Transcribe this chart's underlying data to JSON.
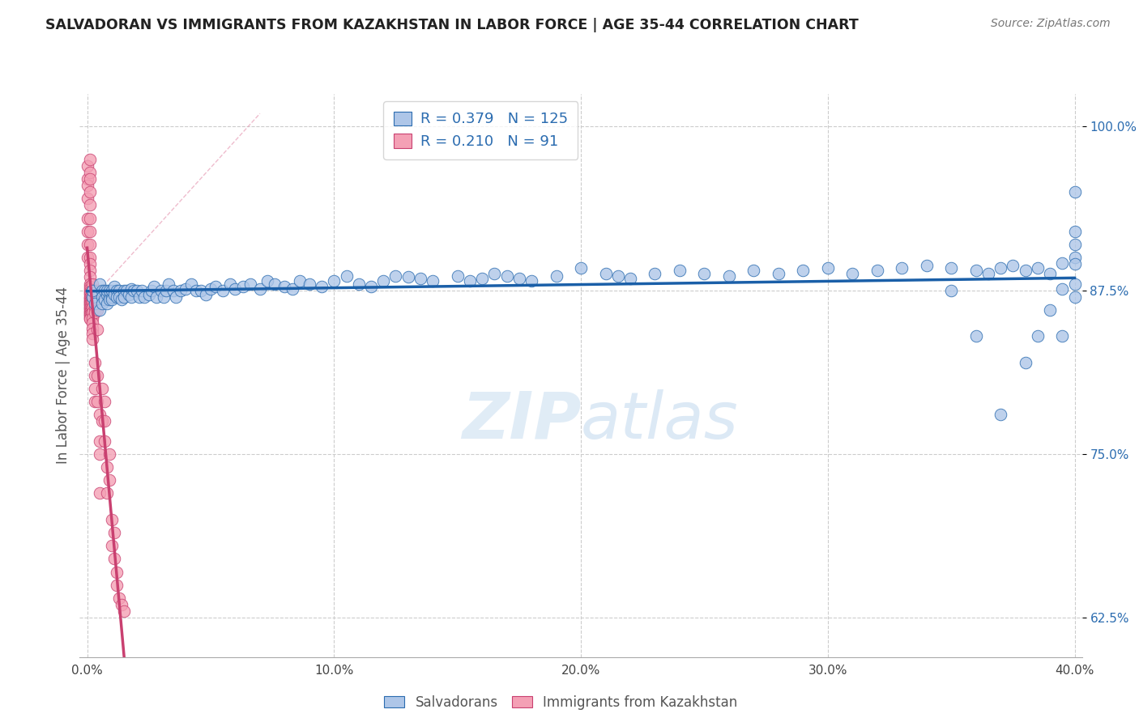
{
  "title": "SALVADORAN VS IMMIGRANTS FROM KAZAKHSTAN IN LABOR FORCE | AGE 35-44 CORRELATION CHART",
  "source": "Source: ZipAtlas.com",
  "ylabel": "In Labor Force | Age 35-44",
  "blue_R": 0.379,
  "blue_N": 125,
  "pink_R": 0.21,
  "pink_N": 91,
  "blue_color": "#aec6e8",
  "blue_edge_color": "#2b6cb0",
  "pink_color": "#f4a0b5",
  "pink_edge_color": "#c94070",
  "blue_line_color": "#1a5fa8",
  "pink_line_color": "#c94070",
  "xlim": [
    -0.003,
    0.403
  ],
  "ylim": [
    0.595,
    1.025
  ],
  "xticks": [
    0.0,
    0.1,
    0.2,
    0.3,
    0.4
  ],
  "xtick_labels": [
    "0.0%",
    "10.0%",
    "20.0%",
    "30.0%",
    "40.0%"
  ],
  "yticks": [
    0.625,
    0.75,
    0.875,
    1.0
  ],
  "ytick_labels": [
    "62.5%",
    "75.0%",
    "87.5%",
    "100.0%"
  ],
  "watermark_zip": "ZIP",
  "watermark_atlas": "atlas",
  "legend_blue_label": "Salvadorans",
  "legend_pink_label": "Immigrants from Kazakhstan",
  "blue_x": [
    0.002,
    0.002,
    0.003,
    0.005,
    0.005,
    0.006,
    0.006,
    0.006,
    0.007,
    0.007,
    0.008,
    0.008,
    0.008,
    0.009,
    0.009,
    0.009,
    0.01,
    0.01,
    0.01,
    0.011,
    0.011,
    0.012,
    0.012,
    0.013,
    0.013,
    0.014,
    0.015,
    0.015,
    0.016,
    0.017,
    0.018,
    0.018,
    0.019,
    0.02,
    0.021,
    0.022,
    0.023,
    0.025,
    0.026,
    0.027,
    0.028,
    0.03,
    0.031,
    0.032,
    0.033,
    0.035,
    0.036,
    0.038,
    0.04,
    0.042,
    0.044,
    0.046,
    0.048,
    0.05,
    0.052,
    0.055,
    0.058,
    0.06,
    0.063,
    0.066,
    0.07,
    0.073,
    0.076,
    0.08,
    0.083,
    0.086,
    0.09,
    0.095,
    0.1,
    0.105,
    0.11,
    0.115,
    0.12,
    0.125,
    0.13,
    0.135,
    0.14,
    0.15,
    0.155,
    0.16,
    0.165,
    0.17,
    0.175,
    0.18,
    0.19,
    0.2,
    0.21,
    0.215,
    0.22,
    0.23,
    0.24,
    0.25,
    0.26,
    0.27,
    0.28,
    0.29,
    0.3,
    0.31,
    0.32,
    0.33,
    0.34,
    0.35,
    0.36,
    0.365,
    0.37,
    0.375,
    0.38,
    0.385,
    0.39,
    0.395,
    0.395,
    0.4,
    0.4,
    0.4,
    0.4,
    0.4,
    0.4,
    0.4,
    0.395,
    0.39,
    0.385,
    0.38,
    0.37,
    0.36,
    0.35
  ],
  "blue_y": [
    0.87,
    0.875,
    0.865,
    0.88,
    0.86,
    0.875,
    0.87,
    0.865,
    0.875,
    0.868,
    0.872,
    0.865,
    0.875,
    0.87,
    0.868,
    0.875,
    0.87,
    0.875,
    0.868,
    0.872,
    0.878,
    0.875,
    0.87,
    0.875,
    0.87,
    0.868,
    0.875,
    0.87,
    0.875,
    0.872,
    0.876,
    0.87,
    0.875,
    0.875,
    0.87,
    0.875,
    0.87,
    0.872,
    0.875,
    0.878,
    0.87,
    0.875,
    0.87,
    0.875,
    0.88,
    0.875,
    0.87,
    0.875,
    0.876,
    0.88,
    0.875,
    0.875,
    0.872,
    0.876,
    0.878,
    0.875,
    0.88,
    0.876,
    0.878,
    0.88,
    0.876,
    0.882,
    0.88,
    0.878,
    0.876,
    0.882,
    0.88,
    0.878,
    0.882,
    0.886,
    0.88,
    0.878,
    0.882,
    0.886,
    0.885,
    0.884,
    0.882,
    0.886,
    0.882,
    0.884,
    0.888,
    0.886,
    0.884,
    0.882,
    0.886,
    0.892,
    0.888,
    0.886,
    0.884,
    0.888,
    0.89,
    0.888,
    0.886,
    0.89,
    0.888,
    0.89,
    0.892,
    0.888,
    0.89,
    0.892,
    0.894,
    0.892,
    0.89,
    0.888,
    0.892,
    0.894,
    0.89,
    0.892,
    0.888,
    0.896,
    0.876,
    0.95,
    0.92,
    0.91,
    0.9,
    0.895,
    0.88,
    0.87,
    0.84,
    0.86,
    0.84,
    0.82,
    0.78,
    0.84,
    0.875
  ],
  "pink_x": [
    0.0,
    0.0,
    0.0,
    0.0,
    0.0,
    0.0,
    0.0,
    0.0,
    0.001,
    0.001,
    0.001,
    0.001,
    0.001,
    0.001,
    0.001,
    0.001,
    0.001,
    0.001,
    0.001,
    0.001,
    0.001,
    0.001,
    0.001,
    0.001,
    0.001,
    0.001,
    0.001,
    0.001,
    0.001,
    0.001,
    0.001,
    0.001,
    0.001,
    0.001,
    0.001,
    0.001,
    0.001,
    0.001,
    0.001,
    0.001,
    0.001,
    0.001,
    0.001,
    0.001,
    0.002,
    0.002,
    0.002,
    0.002,
    0.002,
    0.002,
    0.002,
    0.002,
    0.002,
    0.002,
    0.002,
    0.002,
    0.003,
    0.003,
    0.003,
    0.003,
    0.003,
    0.003,
    0.003,
    0.003,
    0.004,
    0.004,
    0.004,
    0.004,
    0.004,
    0.005,
    0.005,
    0.005,
    0.005,
    0.006,
    0.006,
    0.007,
    0.007,
    0.007,
    0.008,
    0.008,
    0.009,
    0.009,
    0.01,
    0.01,
    0.011,
    0.011,
    0.012,
    0.012,
    0.013,
    0.014,
    0.015
  ],
  "pink_y": [
    0.97,
    0.96,
    0.955,
    0.945,
    0.93,
    0.92,
    0.91,
    0.9,
    0.975,
    0.965,
    0.96,
    0.95,
    0.94,
    0.93,
    0.92,
    0.91,
    0.9,
    0.895,
    0.89,
    0.885,
    0.88,
    0.878,
    0.876,
    0.874,
    0.873,
    0.872,
    0.87,
    0.869,
    0.868,
    0.867,
    0.866,
    0.865,
    0.864,
    0.863,
    0.862,
    0.861,
    0.86,
    0.859,
    0.858,
    0.857,
    0.856,
    0.855,
    0.854,
    0.853,
    0.88,
    0.875,
    0.87,
    0.868,
    0.866,
    0.862,
    0.858,
    0.854,
    0.85,
    0.846,
    0.842,
    0.838,
    0.87,
    0.866,
    0.862,
    0.858,
    0.82,
    0.81,
    0.8,
    0.79,
    0.875,
    0.86,
    0.845,
    0.81,
    0.79,
    0.78,
    0.76,
    0.75,
    0.72,
    0.8,
    0.775,
    0.79,
    0.775,
    0.76,
    0.74,
    0.72,
    0.75,
    0.73,
    0.7,
    0.68,
    0.69,
    0.67,
    0.66,
    0.65,
    0.64,
    0.635,
    0.63
  ]
}
